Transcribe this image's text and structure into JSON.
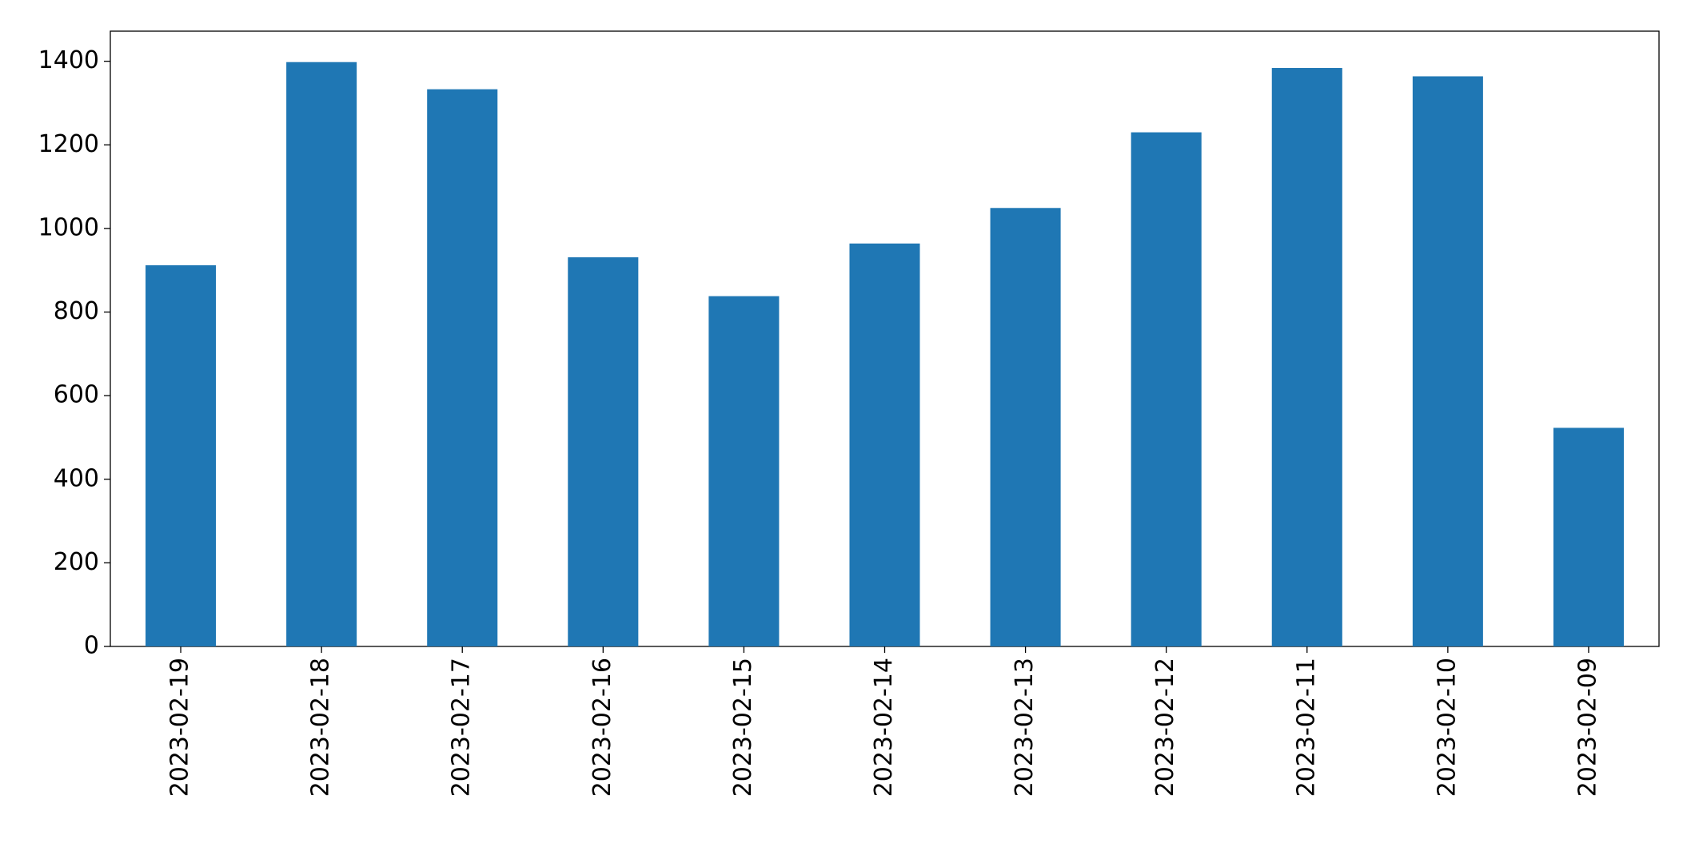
{
  "chart_data": {
    "type": "bar",
    "categories": [
      "2023-02-19",
      "2023-02-18",
      "2023-02-17",
      "2023-02-16",
      "2023-02-15",
      "2023-02-14",
      "2023-02-13",
      "2023-02-12",
      "2023-02-11",
      "2023-02-10",
      "2023-02-09"
    ],
    "values": [
      912,
      1398,
      1333,
      931,
      838,
      964,
      1049,
      1230,
      1384,
      1364,
      523
    ],
    "color": "#1f77b4",
    "ylim": [
      0,
      1472
    ],
    "yticks": [
      0,
      200,
      400,
      600,
      800,
      1000,
      1200,
      1400
    ],
    "grid": false
  }
}
